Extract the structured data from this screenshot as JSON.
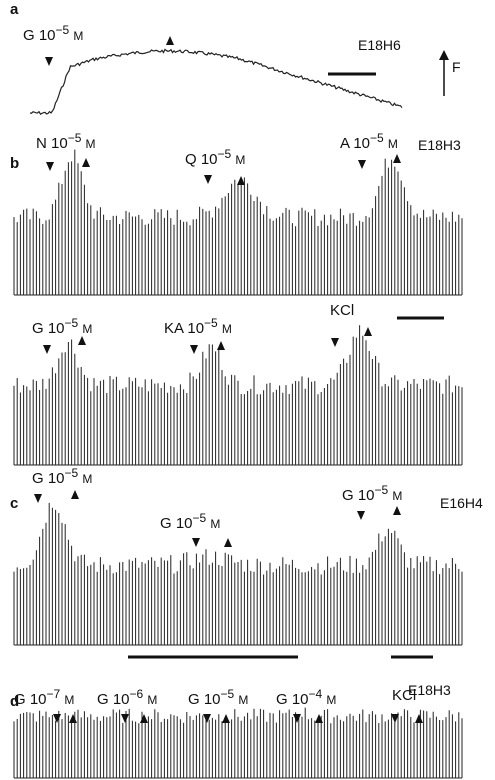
{
  "figure": {
    "panels": [
      {
        "letter": "a",
        "id": "E18H6"
      },
      {
        "letter": "b",
        "id": "E18H3"
      },
      {
        "letter": "c",
        "id": "E16H4"
      },
      {
        "letter": "d",
        "id": "E18H3"
      }
    ],
    "axis_label": "F",
    "applications": {
      "a_G": "G 10",
      "b_N": "N 10",
      "b_Q": "Q 10",
      "b_A": "A 10",
      "b2_G": "G 10",
      "b2_KA": "KA 10",
      "b2_KCl": "KCl",
      "c_G1": "G 10",
      "c_G2": "G 10",
      "c_G3": "G 10",
      "d_G1": "G 10",
      "d_G2": "G 10",
      "d_G3": "G 10",
      "d_G4": "G 10",
      "d_KCl": "KCl"
    },
    "exponents": {
      "a_G": "−5",
      "b_N": "−5",
      "b_Q": "−5",
      "b_A": "−5",
      "b2_G": "−5",
      "b2_KA": "−5",
      "c_G1": "−5",
      "c_G2": "−5",
      "c_G3": "−5",
      "d_G1": "−7",
      "d_G2": "−6",
      "d_G3": "−5",
      "d_G4": "−4"
    },
    "unit": "M"
  }
}
